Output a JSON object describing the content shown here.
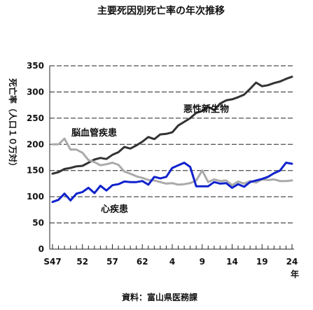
{
  "chart_data": {
    "type": "line",
    "title": "主要死因別死亡率の年次推移",
    "ylabel": "死亡率（人口１０万対）",
    "xunit": "年",
    "source": "資料：富山県医務課",
    "ylim": [
      0,
      350
    ],
    "yticks": [
      0,
      50,
      100,
      150,
      200,
      250,
      300,
      350
    ],
    "grid": "horizontal dashed",
    "x": [
      "S47",
      "S48",
      "S49",
      "S50",
      "S51",
      "S52",
      "S53",
      "S54",
      "S55",
      "S56",
      "S57",
      "S58",
      "S59",
      "S60",
      "S61",
      "S62",
      "S63",
      "H1",
      "H2",
      "H3",
      "H4",
      "H5",
      "H6",
      "H7",
      "H8",
      "H9",
      "H10",
      "H11",
      "H12",
      "H13",
      "H14",
      "H15",
      "H16",
      "H17",
      "H18",
      "H19",
      "H20",
      "H21",
      "H22",
      "H23",
      "H24"
    ],
    "xtick_labels": [
      "S47",
      "52",
      "57",
      "62",
      "4",
      "9",
      "14",
      "19",
      "24"
    ],
    "xtick_positions": [
      "S47",
      "S52",
      "S57",
      "S62",
      "H4",
      "H9",
      "H14",
      "H19",
      "H24"
    ],
    "series": [
      {
        "name": "悪性新生物",
        "color": "#333333",
        "values": [
          144,
          147,
          153,
          155,
          158,
          159,
          165,
          171,
          174,
          172,
          180,
          185,
          195,
          192,
          198,
          205,
          214,
          210,
          219,
          220,
          223,
          236,
          243,
          250,
          260,
          264,
          272,
          265,
          278,
          284,
          286,
          290,
          295,
          306,
          318,
          311,
          313,
          317,
          320,
          325,
          329
        ]
      },
      {
        "name": "脳血管疾患",
        "color": "#aaaaaa",
        "values": [
          200,
          200,
          211,
          190,
          190,
          184,
          170,
          166,
          160,
          162,
          165,
          161,
          148,
          144,
          139,
          136,
          132,
          131,
          128,
          125,
          126,
          123,
          124,
          126,
          131,
          150,
          128,
          133,
          130,
          131,
          122,
          129,
          125,
          130,
          127,
          133,
          132,
          133,
          130,
          130,
          131
        ]
      },
      {
        "name": "心疾患",
        "color": "#1122cc",
        "values": [
          90,
          94,
          106,
          93,
          106,
          109,
          117,
          107,
          121,
          112,
          122,
          124,
          129,
          128,
          128,
          130,
          123,
          138,
          135,
          138,
          155,
          160,
          165,
          157,
          120,
          120,
          120,
          128,
          125,
          126,
          117,
          124,
          119,
          128,
          131,
          134,
          138,
          145,
          150,
          165,
          163
        ]
      }
    ],
    "annotations": [
      "悪性新生物",
      "脳血管疾患",
      "心疾患"
    ]
  }
}
